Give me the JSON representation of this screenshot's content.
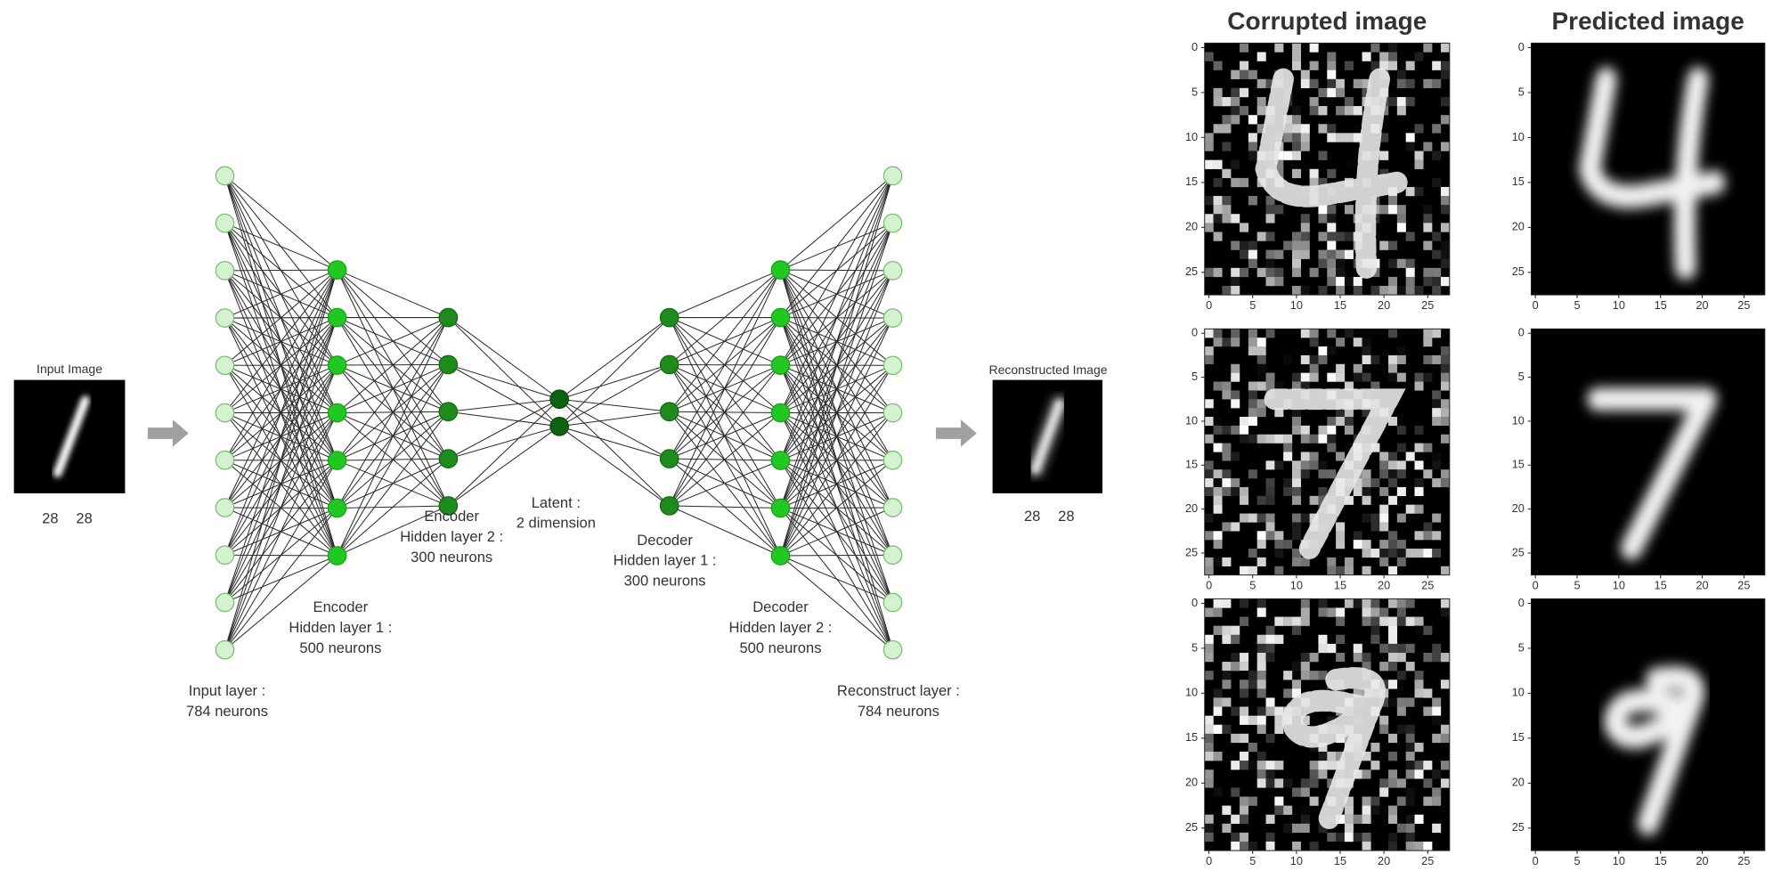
{
  "input_image": {
    "label": "Input Image",
    "dims": [
      "28",
      "28"
    ]
  },
  "reconstructed_image": {
    "label": "Reconstructed Image",
    "dims": [
      "28",
      "28"
    ]
  },
  "layers": [
    {
      "label": [
        "Input layer :",
        "784 neurons"
      ]
    },
    {
      "label": [
        "Encoder",
        "Hidden layer 1 :",
        "500 neurons"
      ]
    },
    {
      "label": [
        "Encoder",
        "Hidden layer 2 :",
        "300 neurons"
      ]
    },
    {
      "label": [
        "Latent :",
        "2 dimension"
      ]
    },
    {
      "label": [
        "Decoder",
        "Hidden layer 1 :",
        "300 neurons"
      ]
    },
    {
      "label": [
        "Decoder",
        "Hidden layer 2 :",
        "500 neurons"
      ]
    },
    {
      "label": [
        "Reconstruct layer :",
        "784 neurons"
      ]
    }
  ],
  "image_grid": {
    "columns": [
      {
        "title": "Corrupted image",
        "panels": [
          {
            "xticks": [
              0,
              5,
              10,
              15,
              20,
              25
            ],
            "yticks": [
              0,
              5,
              10,
              15,
              20,
              25
            ]
          },
          {
            "xticks": [
              0,
              5,
              10,
              15,
              20,
              25
            ],
            "yticks": [
              0,
              5,
              10,
              15,
              20,
              25
            ]
          },
          {
            "xticks": [
              0,
              5,
              10,
              15,
              20,
              25
            ],
            "yticks": [
              0,
              5,
              10,
              15,
              20,
              25
            ]
          }
        ]
      },
      {
        "title": "Predicted image",
        "panels": [
          {
            "xticks": [
              0,
              5,
              10,
              15,
              20,
              25
            ],
            "yticks": [
              0,
              5,
              10,
              15,
              20,
              25
            ]
          },
          {
            "xticks": [
              0,
              5,
              10,
              15,
              20,
              25
            ],
            "yticks": [
              0,
              5,
              10,
              15,
              20,
              25
            ]
          },
          {
            "xticks": [
              0,
              5,
              10,
              15,
              20,
              25
            ],
            "yticks": [
              0,
              5,
              10,
              15,
              20,
              25
            ]
          }
        ]
      }
    ]
  }
}
